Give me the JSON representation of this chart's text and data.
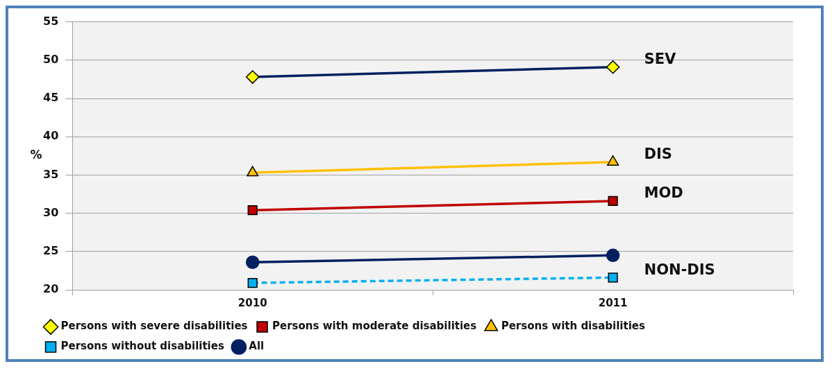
{
  "chart_data": {
    "type": "line",
    "categories": [
      "2010",
      "2011"
    ],
    "ylabel": "%",
    "ylim": [
      20,
      55
    ],
    "yticks": [
      20,
      25,
      30,
      35,
      40,
      45,
      50,
      55
    ],
    "grid": "y",
    "legend": "bottom",
    "series": [
      {
        "name": "Persons with severe disabilities",
        "color": "#002060",
        "marker": "diamond",
        "values": [
          47.8,
          49.1
        ]
      },
      {
        "name": "Persons with moderate disabilities",
        "color": "#c00000",
        "marker": "square",
        "values": [
          30.4,
          31.6
        ]
      },
      {
        "name": "Persons with disabilities",
        "color": "#ffc000",
        "marker": "triangle",
        "values": [
          35.3,
          36.7
        ]
      },
      {
        "name": "Persons without disabilities",
        "color": "#00b0f0",
        "marker": "square",
        "line_style": "dashed",
        "values": [
          20.9,
          21.6
        ]
      },
      {
        "name": "All",
        "color": "#002060",
        "marker": "circle",
        "values": [
          23.6,
          24.5
        ]
      }
    ],
    "annotations": [
      {
        "text": "SEV",
        "x": "2011",
        "y": 49.1
      },
      {
        "text": "DIS",
        "x": "2011",
        "y": 36.7
      },
      {
        "text": "MOD",
        "x": "2011",
        "y": 31.6
      },
      {
        "text": "NON-DIS",
        "x": "2011",
        "y": 21.6
      }
    ]
  }
}
